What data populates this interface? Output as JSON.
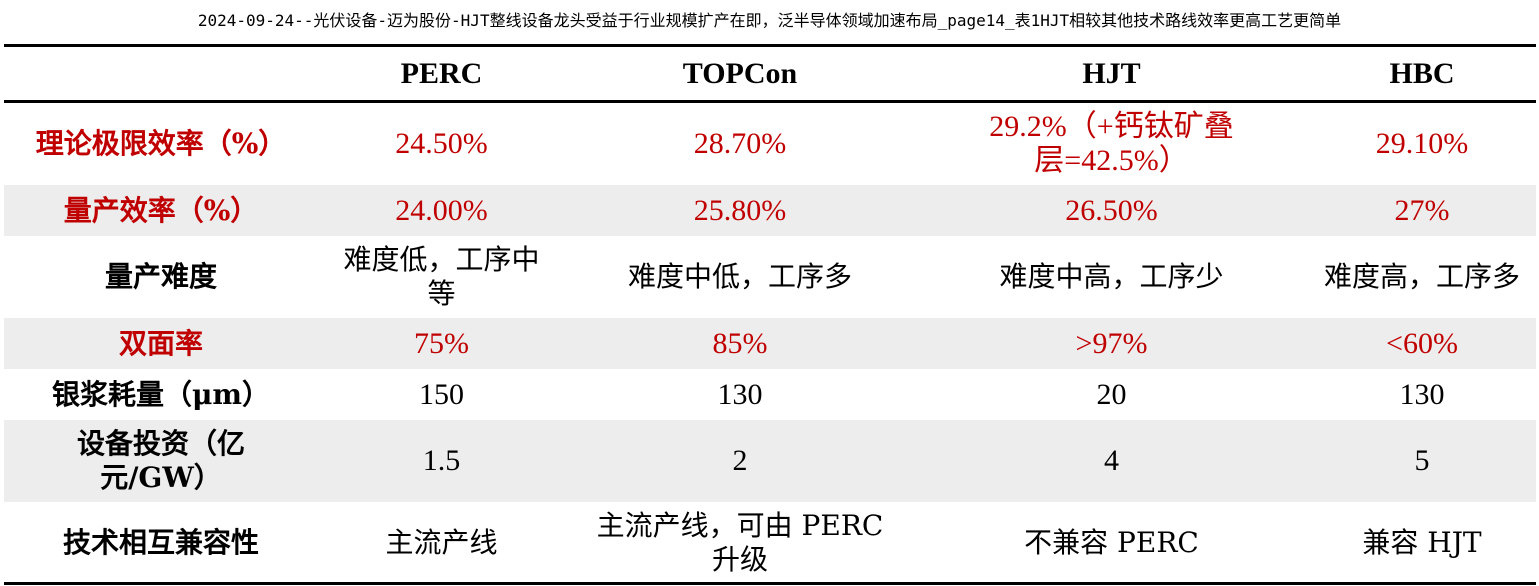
{
  "page_title": "2024-09-24--光伏设备-迈为股份-HJT整线设备龙头受益于行业规模扩产在即，泛半导体领域加速布局_page14_表1HJT相较其他技术路线效率更高工艺更简单",
  "colors": {
    "highlight": "#c00000",
    "row_shade": "#ededed",
    "rule": "#000000"
  },
  "table": {
    "headers": [
      "",
      "PERC",
      "TOPCon",
      "HJT",
      "HBC"
    ],
    "rows": [
      {
        "label": "理论极限效率（%）",
        "highlight": true,
        "cells": [
          "24.50%",
          "28.70%",
          "29.2%（+钙钛矿叠层=42.5%）",
          "29.10%"
        ]
      },
      {
        "label": "量产效率（%）",
        "highlight": true,
        "cells": [
          "24.00%",
          "25.80%",
          "26.50%",
          "27%"
        ]
      },
      {
        "label": "量产难度",
        "highlight": false,
        "cells": [
          "难度低，工序中等",
          "难度中低，工序多",
          "难度中高，工序少",
          "难度高，工序多"
        ]
      },
      {
        "label": "双面率",
        "highlight": true,
        "cells": [
          "75%",
          "85%",
          ">97%",
          "<60%"
        ]
      },
      {
        "label": "银浆耗量（μm）",
        "highlight": false,
        "cells": [
          "150",
          "130",
          "20",
          "130"
        ]
      },
      {
        "label": "设备投资（亿元/GW）",
        "highlight": false,
        "cells": [
          "1.5",
          "2",
          "4",
          "5"
        ]
      },
      {
        "label": "技术相互兼容性",
        "highlight": false,
        "cells": [
          "主流产线",
          "主流产线，可由 PERC 升级",
          "不兼容 PERC",
          "兼容 HJT"
        ]
      }
    ]
  }
}
